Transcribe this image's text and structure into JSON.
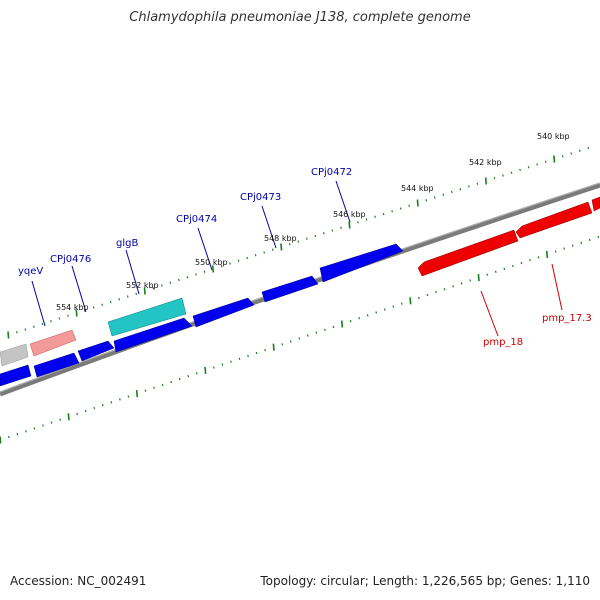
{
  "title": "Chlamydophila pneumoniae J138, complete genome",
  "footer": {
    "accession": "Accession: NC_002491",
    "summary": "Topology: circular; Length: 1,226,565 bp; Genes: 1,110"
  },
  "colors": {
    "backbone": "#808080",
    "tick": "#1a7f1a",
    "gene_forward": "#0000ee",
    "gene_reverse": "#ee0000",
    "gene_teal": "#22c4c4",
    "gene_pink": "#e87a7a",
    "gene_gray": "#bdbdbd",
    "label_forward": "#0000aa",
    "label_reverse": "#cc0000",
    "scale_text": "#111111"
  },
  "scale_labels": [
    "540 kbp",
    "542 kbp",
    "544 kbp",
    "546 kbp",
    "548 kbp",
    "550 kbp",
    "552 kbp",
    "554 kbp"
  ],
  "gene_labels_forward": [
    "yqeV",
    "CPj0476",
    "glgB",
    "CPj0474",
    "CPj0473",
    "CPj0472"
  ],
  "gene_labels_reverse": [
    "pmp_18",
    "pmp_17.3"
  ]
}
